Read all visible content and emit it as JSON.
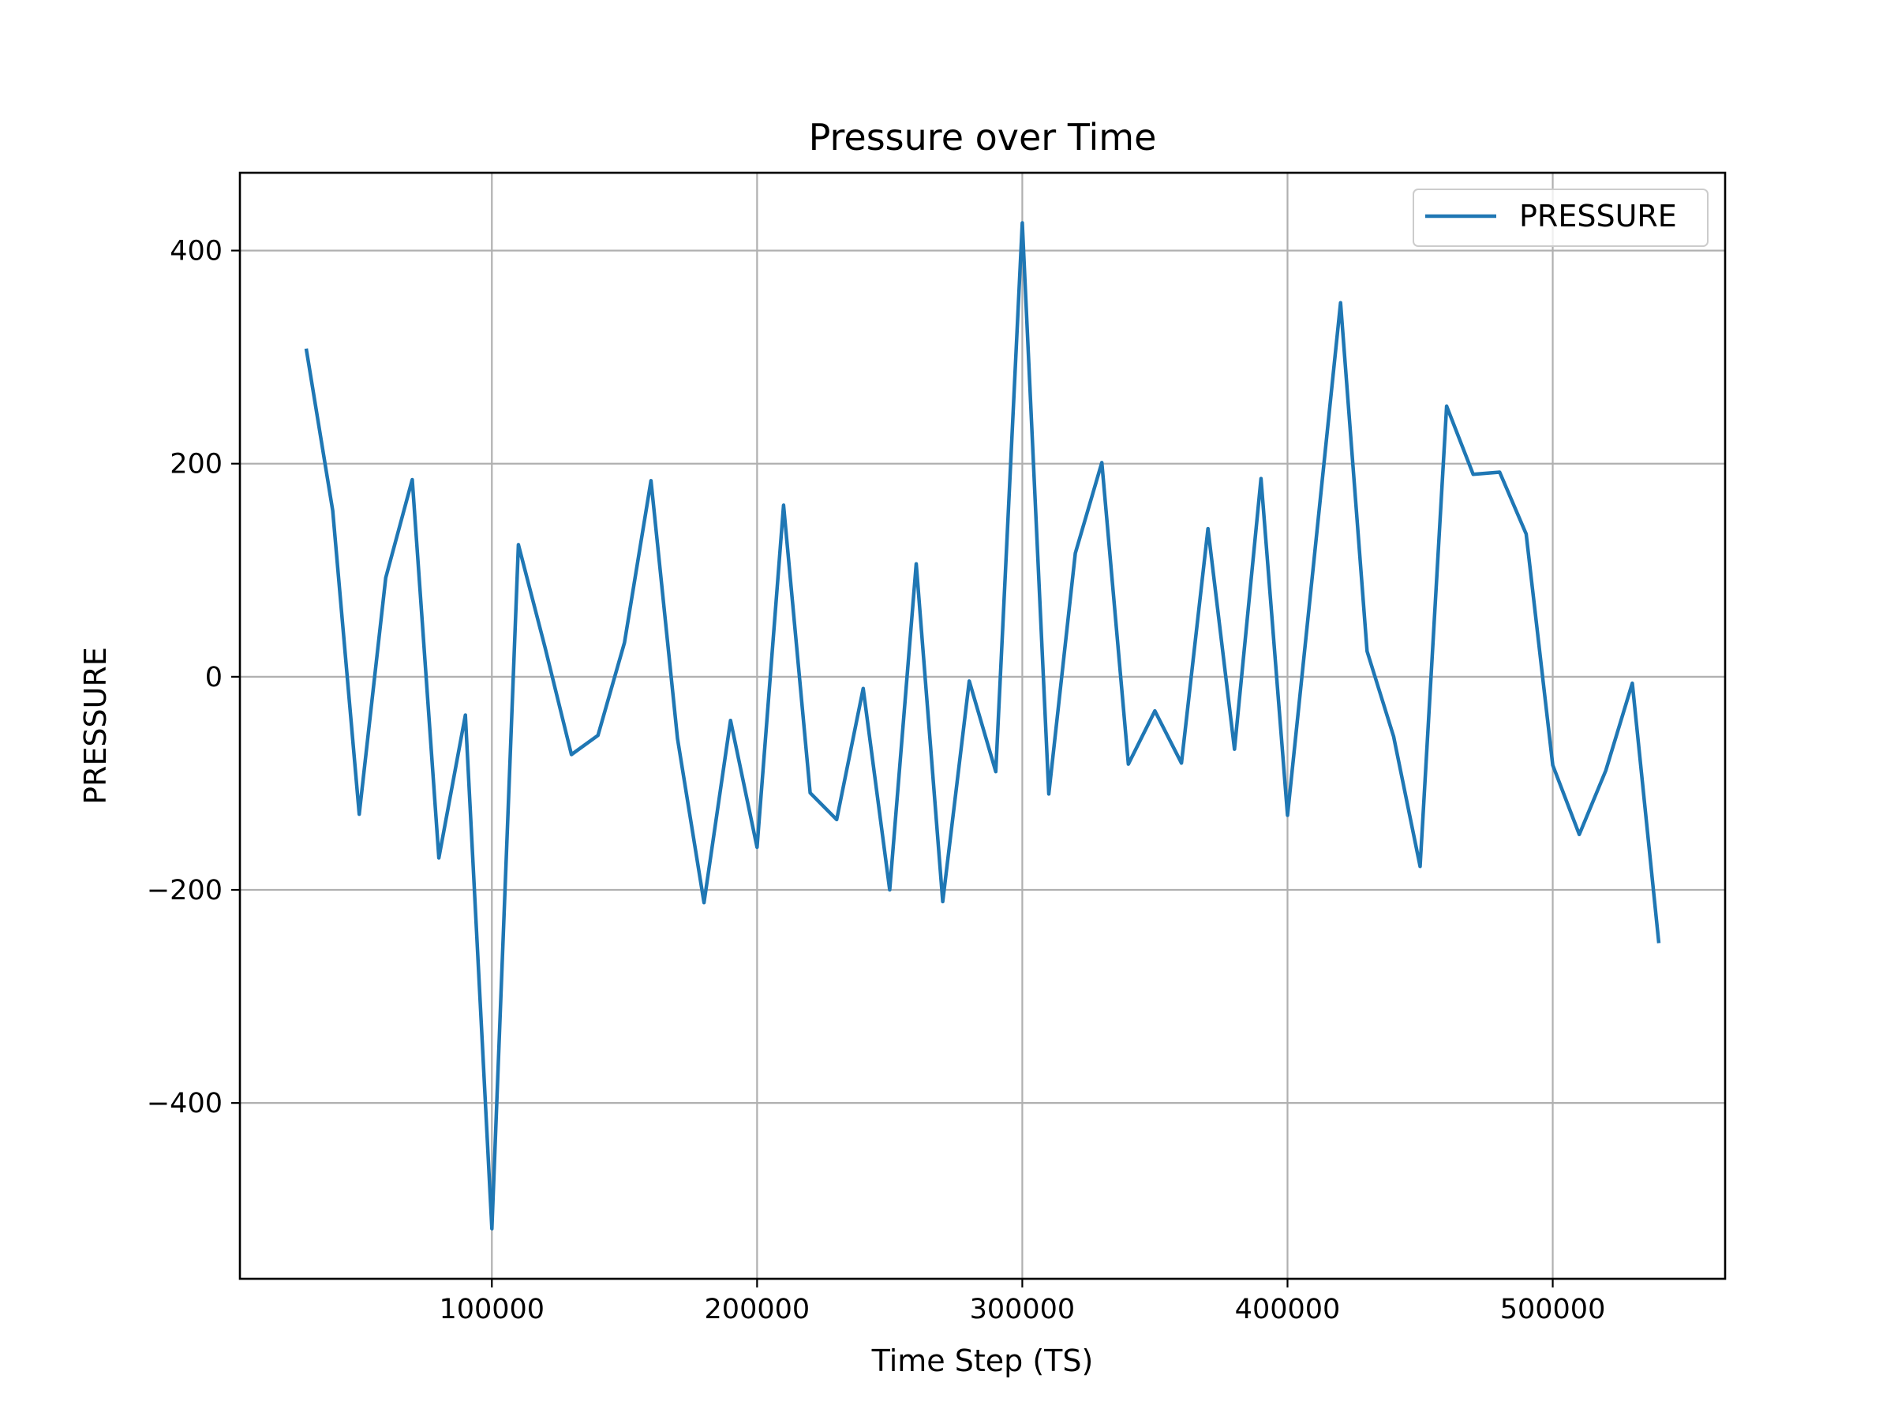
{
  "chart_data": {
    "type": "line",
    "title": "Pressure over Time",
    "xlabel": "Time Step (TS)",
    "ylabel": "PRESSURE",
    "xlim": [
      5000,
      565000
    ],
    "ylim": [
      -565,
      473
    ],
    "xticks": [
      100000,
      200000,
      300000,
      400000,
      500000
    ],
    "yticks": [
      -400,
      -200,
      0,
      200,
      400
    ],
    "xtick_labels": [
      "100000",
      "200000",
      "300000",
      "400000",
      "500000"
    ],
    "ytick_labels": [
      "−400",
      "−200",
      "0",
      "200",
      "400"
    ],
    "grid": true,
    "legend_position": "top-right",
    "series": [
      {
        "name": "PRESSURE",
        "color": "#1f77b4",
        "x": [
          30000,
          40000,
          50000,
          60000,
          70000,
          80000,
          90000,
          100000,
          110000,
          120000,
          130000,
          140000,
          150000,
          160000,
          170000,
          180000,
          190000,
          200000,
          210000,
          220000,
          230000,
          240000,
          250000,
          260000,
          270000,
          280000,
          290000,
          300000,
          310000,
          320000,
          330000,
          340000,
          350000,
          360000,
          370000,
          380000,
          390000,
          400000,
          410000,
          420000,
          430000,
          440000,
          450000,
          460000,
          470000,
          480000,
          490000,
          500000,
          510000,
          520000,
          530000,
          540000
        ],
        "y": [
          308,
          156,
          -129,
          93,
          185,
          -170,
          -36,
          -518,
          124,
          28,
          -73,
          -55,
          32,
          184,
          -58,
          -212,
          -41,
          -160,
          161,
          -109,
          -134,
          -11,
          -200,
          106,
          -211,
          -4,
          -89,
          426,
          -110,
          116,
          201,
          -82,
          -32,
          -81,
          139,
          -68,
          186,
          -130,
          110,
          351,
          24,
          -56,
          -178,
          254,
          190,
          192,
          134,
          -83,
          -148,
          -88,
          -6,
          -250
        ]
      }
    ]
  }
}
